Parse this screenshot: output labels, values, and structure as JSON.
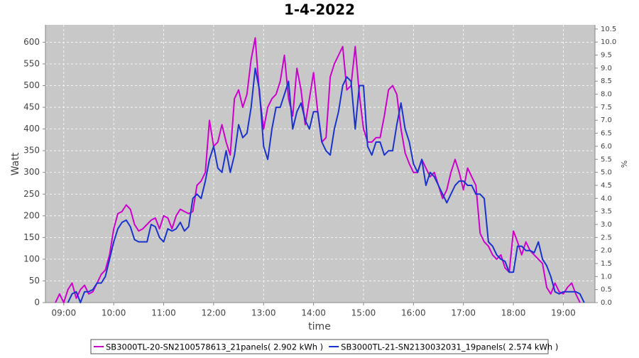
{
  "chart_data": {
    "type": "line",
    "title": "1-4-2022",
    "x_label": "time",
    "y_label": "Watt",
    "y2_label": "%",
    "xlim": [
      "08:38",
      "19:38"
    ],
    "xticks": [
      "09:00",
      "10:00",
      "11:00",
      "12:00",
      "13:00",
      "14:00",
      "15:00",
      "16:00",
      "17:00",
      "18:00",
      "19:00"
    ],
    "ylim": [
      0,
      640
    ],
    "yticks": [
      0,
      50,
      100,
      150,
      200,
      250,
      300,
      350,
      400,
      450,
      500,
      550,
      600
    ],
    "y2lim": [
      0,
      10.66
    ],
    "y2ticks": [
      {
        "value": 0,
        "label": "0.0"
      },
      0.5,
      {
        "value": 1,
        "label": "1.0"
      },
      1.5,
      {
        "value": 2,
        "label": "2.0"
      },
      2.5,
      {
        "value": 3,
        "label": "3.0"
      },
      3.5,
      {
        "value": 4,
        "label": "4.0"
      },
      4.5,
      {
        "value": 5,
        "label": "5.0"
      },
      5.5,
      {
        "value": 6,
        "label": "6.0"
      },
      6.5,
      {
        "value": 7,
        "label": "7.0"
      },
      7.5,
      {
        "value": 8,
        "label": "8.0"
      },
      8.5,
      {
        "value": 9,
        "label": "9.0"
      },
      9.5,
      {
        "value": 10,
        "label": "10.0"
      },
      10.5
    ],
    "grid": true,
    "x": [
      "08:50",
      "08:55",
      "09:00",
      "09:05",
      "09:10",
      "09:15",
      "09:20",
      "09:25",
      "09:30",
      "09:35",
      "09:40",
      "09:45",
      "09:50",
      "09:55",
      "10:00",
      "10:05",
      "10:10",
      "10:15",
      "10:20",
      "10:25",
      "10:30",
      "10:35",
      "10:40",
      "10:45",
      "10:50",
      "10:55",
      "11:00",
      "11:05",
      "11:10",
      "11:15",
      "11:20",
      "11:25",
      "11:30",
      "11:35",
      "11:40",
      "11:45",
      "11:50",
      "11:55",
      "12:00",
      "12:05",
      "12:10",
      "12:15",
      "12:20",
      "12:25",
      "12:30",
      "12:35",
      "12:40",
      "12:45",
      "12:50",
      "12:55",
      "13:00",
      "13:05",
      "13:10",
      "13:15",
      "13:20",
      "13:25",
      "13:30",
      "13:35",
      "13:40",
      "13:45",
      "13:50",
      "13:55",
      "14:00",
      "14:05",
      "14:10",
      "14:15",
      "14:20",
      "14:25",
      "14:30",
      "14:35",
      "14:40",
      "14:45",
      "14:50",
      "14:55",
      "15:00",
      "15:05",
      "15:10",
      "15:15",
      "15:20",
      "15:25",
      "15:30",
      "15:35",
      "15:40",
      "15:45",
      "15:50",
      "15:55",
      "16:00",
      "16:05",
      "16:10",
      "16:15",
      "16:20",
      "16:25",
      "16:30",
      "16:35",
      "16:40",
      "16:45",
      "16:50",
      "16:55",
      "17:00",
      "17:05",
      "17:10",
      "17:15",
      "17:20",
      "17:25",
      "17:30",
      "17:35",
      "17:40",
      "17:45",
      "17:50",
      "17:55",
      "18:00",
      "18:05",
      "18:10",
      "18:15",
      "18:20",
      "18:25",
      "18:30",
      "18:35",
      "18:40",
      "18:45",
      "18:50",
      "18:55",
      "19:00",
      "19:05",
      "19:10",
      "19:15",
      "19:20",
      "19:25"
    ],
    "series": [
      {
        "name": "SB3000TL-20-SN2100578613_21panels( 2.902 kWh )",
        "color": "#cc00cc",
        "values": [
          0,
          20,
          0,
          30,
          45,
          10,
          30,
          40,
          20,
          25,
          45,
          65,
          75,
          110,
          170,
          205,
          210,
          225,
          215,
          180,
          165,
          170,
          180,
          190,
          195,
          170,
          200,
          195,
          170,
          200,
          215,
          210,
          205,
          210,
          270,
          280,
          300,
          420,
          360,
          370,
          410,
          370,
          340,
          470,
          490,
          450,
          480,
          560,
          610,
          480,
          400,
          450,
          470,
          480,
          510,
          570,
          470,
          430,
          540,
          490,
          410,
          470,
          530,
          440,
          370,
          380,
          520,
          550,
          570,
          590,
          490,
          500,
          590,
          480,
          400,
          370,
          370,
          380,
          380,
          430,
          490,
          500,
          480,
          400,
          345,
          320,
          300,
          300,
          330,
          310,
          290,
          300,
          270,
          240,
          260,
          300,
          330,
          300,
          260,
          310,
          290,
          270,
          160,
          140,
          130,
          110,
          100,
          110,
          80,
          70,
          165,
          140,
          110,
          140,
          120,
          110,
          100,
          90,
          35,
          20,
          45,
          25,
          20,
          35,
          45,
          20,
          0,
          null
        ]
      },
      {
        "name": "SB3000TL-21-SN2130032031_19panels( 2.574 kWh )",
        "color": "#1a33cc",
        "values": [
          null,
          null,
          null,
          0,
          20,
          25,
          0,
          25,
          25,
          30,
          45,
          45,
          60,
          100,
          140,
          170,
          185,
          190,
          175,
          145,
          140,
          140,
          140,
          180,
          175,
          150,
          140,
          170,
          165,
          170,
          185,
          165,
          175,
          240,
          250,
          240,
          280,
          330,
          360,
          310,
          300,
          350,
          300,
          340,
          410,
          380,
          390,
          450,
          540,
          490,
          360,
          330,
          400,
          450,
          450,
          480,
          510,
          400,
          440,
          460,
          420,
          400,
          440,
          440,
          370,
          350,
          340,
          400,
          440,
          500,
          520,
          510,
          400,
          500,
          500,
          360,
          340,
          370,
          370,
          340,
          350,
          350,
          410,
          460,
          400,
          370,
          320,
          300,
          330,
          270,
          300,
          290,
          270,
          250,
          230,
          250,
          270,
          280,
          280,
          270,
          270,
          250,
          250,
          240,
          140,
          130,
          110,
          100,
          95,
          70,
          70,
          130,
          130,
          120,
          120,
          115,
          140,
          100,
          85,
          60,
          25,
          20,
          25,
          25,
          25,
          25,
          20,
          0
        ]
      }
    ]
  }
}
